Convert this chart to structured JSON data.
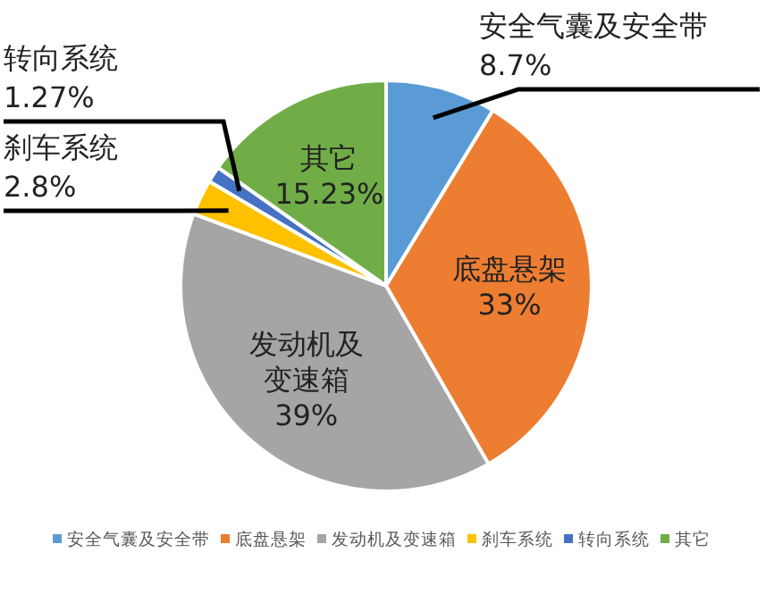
{
  "chart_data": {
    "type": "pie",
    "categories": [
      "安全气囊及安全带",
      "底盘悬架",
      "发动机及变速箱",
      "刹车系统",
      "转向系统",
      "其它"
    ],
    "values": [
      8.7,
      33,
      39,
      2.8,
      1.27,
      15.23
    ],
    "value_labels": [
      "8.7%",
      "33%",
      "39%",
      "2.8%",
      "1.27%",
      "15.23%"
    ],
    "colors": [
      "#5b9bd5",
      "#ed7d31",
      "#a5a5a5",
      "#ffc000",
      "#4472c4",
      "#70ad47"
    ],
    "legend": "bottom"
  }
}
